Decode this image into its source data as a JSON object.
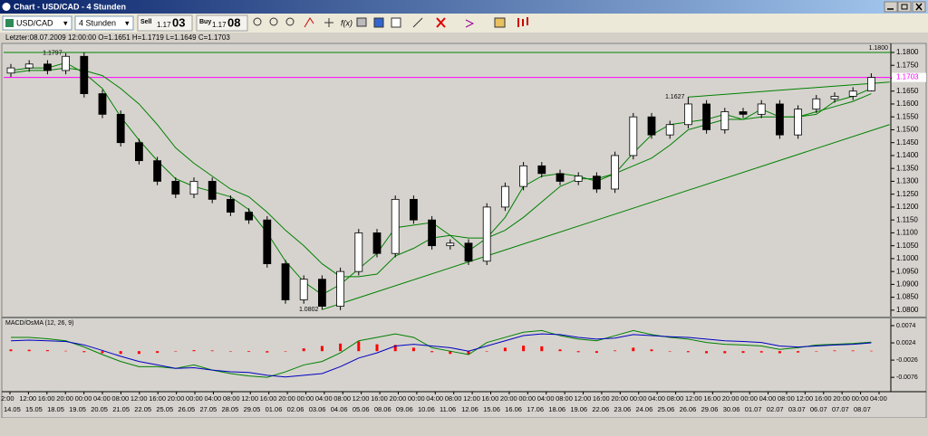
{
  "window": {
    "title": "Chart - USD/CAD - 4 Stunden"
  },
  "toolbar": {
    "symbol": "USD/CAD",
    "period": "4 Stunden",
    "sell": {
      "label": "Sell",
      "price": "1.17",
      "pips": "03"
    },
    "buy": {
      "label": "Buy",
      "price": "1.17",
      "pips": "08"
    }
  },
  "info": "Letzter:08.07.2009 12:00:00 O=1.1651 H=1.1719 L=1.1649 C=1.1703",
  "time_axis": {
    "times": [
      "2:00",
      "12:00",
      "16:00",
      "20:00",
      "00:00",
      "04:00",
      "08:00",
      "12:00",
      "16:00",
      "20:00",
      "00:00",
      "04:00",
      "08:00",
      "12:00",
      "16:00",
      "20:00",
      "00:00",
      "04:00",
      "08:00",
      "12:00",
      "16:00",
      "20:00",
      "00:00",
      "04:00",
      "08:00",
      "12:00",
      "16:00",
      "20:00",
      "00:00",
      "04:00",
      "08:00",
      "12:00",
      "16:00",
      "20:00",
      "00:00",
      "04:00",
      "08:00",
      "12:00",
      "16:00",
      "20:00",
      "00:00",
      "04:00",
      "08:00",
      "12:00",
      "16:00",
      "20:00",
      "00:00",
      "04:00"
    ],
    "dates": [
      "14.05",
      "15.05",
      "18.05",
      "19.05",
      "20.05",
      "21.05",
      "22.05",
      "25.05",
      "26.05",
      "27.05",
      "28.05",
      "29.05",
      "01.06",
      "02.06",
      "03.06",
      "04.06",
      "05.06",
      "08.06",
      "09.06",
      "10.06",
      "11.06",
      "12.06",
      "15.06",
      "16.06",
      "17.06",
      "18.06",
      "19.06",
      "22.06",
      "23.06",
      "24.06",
      "25.06",
      "26.06",
      "29.06",
      "30.06",
      "01.07",
      "02.07",
      "03.07",
      "06.07",
      "07.07",
      "08.07"
    ]
  },
  "chart_data": [
    {
      "type": "candlestick",
      "up_color": "#ffffff",
      "down_color": "#000000",
      "wick_color": "#000000",
      "open": [
        1.172,
        1.174,
        1.1755,
        1.173,
        1.1785,
        1.164,
        1.156,
        1.145,
        1.138,
        1.13,
        1.125,
        1.13,
        1.123,
        1.118,
        1.115,
        1.098,
        1.084,
        1.092,
        1.0815,
        1.095,
        1.11,
        1.102,
        1.123,
        1.115,
        1.105,
        1.106,
        1.099,
        1.12,
        1.128,
        1.136,
        1.133,
        1.13,
        1.132,
        1.127,
        1.14,
        1.155,
        1.148,
        1.152,
        1.16,
        1.15,
        1.157,
        1.156,
        1.16,
        1.148,
        1.158,
        1.162,
        1.163,
        1.1651
      ],
      "high": [
        1.1755,
        1.177,
        1.177,
        1.1797,
        1.18,
        1.1655,
        1.1575,
        1.1465,
        1.1395,
        1.1315,
        1.1315,
        1.1315,
        1.1245,
        1.1195,
        1.1165,
        1.0995,
        1.0935,
        1.0935,
        1.0965,
        1.1115,
        1.1115,
        1.1245,
        1.1245,
        1.1165,
        1.1075,
        1.1075,
        1.1215,
        1.1295,
        1.1375,
        1.1375,
        1.1345,
        1.1335,
        1.1335,
        1.1415,
        1.1565,
        1.1565,
        1.1535,
        1.1627,
        1.1615,
        1.1585,
        1.1585,
        1.1615,
        1.1615,
        1.1595,
        1.1635,
        1.1645,
        1.1665,
        1.1719
      ],
      "low": [
        1.1705,
        1.1725,
        1.1715,
        1.1715,
        1.1625,
        1.1545,
        1.1435,
        1.1365,
        1.1285,
        1.1235,
        1.1235,
        1.1215,
        1.1165,
        1.1135,
        1.0965,
        1.0825,
        1.0825,
        1.0802,
        1.08,
        1.0935,
        1.1005,
        1.1005,
        1.1135,
        1.1035,
        1.1035,
        1.0975,
        1.0975,
        1.1185,
        1.1265,
        1.1315,
        1.1285,
        1.1285,
        1.1255,
        1.1255,
        1.1385,
        1.1465,
        1.1465,
        1.1505,
        1.1485,
        1.1485,
        1.1545,
        1.1545,
        1.1465,
        1.1465,
        1.1565,
        1.1605,
        1.1615,
        1.1649
      ],
      "close": [
        1.174,
        1.1755,
        1.173,
        1.1785,
        1.164,
        1.156,
        1.145,
        1.138,
        1.13,
        1.125,
        1.13,
        1.123,
        1.118,
        1.115,
        1.098,
        1.084,
        1.092,
        1.0815,
        1.095,
        1.11,
        1.102,
        1.123,
        1.115,
        1.105,
        1.106,
        1.099,
        1.12,
        1.128,
        1.136,
        1.133,
        1.13,
        1.132,
        1.127,
        1.14,
        1.155,
        1.148,
        1.152,
        1.16,
        1.15,
        1.157,
        1.156,
        1.16,
        1.148,
        1.158,
        1.162,
        1.163,
        1.165,
        1.1703
      ],
      "moving_averages": [
        {
          "color": "#008000",
          "values": [
            1.173,
            1.174,
            1.174,
            1.176,
            1.172,
            1.166,
            1.155,
            1.146,
            1.138,
            1.131,
            1.128,
            1.126,
            1.124,
            1.119,
            1.11,
            1.099,
            1.091,
            1.086,
            1.09,
            1.096,
            1.102,
            1.112,
            1.113,
            1.114,
            1.109,
            1.103,
            1.108,
            1.116,
            1.128,
            1.132,
            1.133,
            1.132,
            1.13,
            1.133,
            1.141,
            1.148,
            1.152,
            1.153,
            1.154,
            1.156,
            1.154,
            1.158,
            1.155,
            1.155,
            1.156,
            1.161,
            1.163,
            1.166
          ]
        },
        {
          "color": "#008000",
          "values": [
            1.172,
            1.173,
            1.173,
            1.174,
            1.173,
            1.171,
            1.166,
            1.16,
            1.152,
            1.143,
            1.137,
            1.132,
            1.127,
            1.124,
            1.118,
            1.111,
            1.105,
            1.098,
            1.093,
            1.093,
            1.094,
            1.101,
            1.104,
            1.108,
            1.109,
            1.108,
            1.108,
            1.111,
            1.116,
            1.122,
            1.128,
            1.131,
            1.131,
            1.133,
            1.136,
            1.139,
            1.144,
            1.15,
            1.152,
            1.154,
            1.154,
            1.155,
            1.155,
            1.155,
            1.157,
            1.159,
            1.161,
            1.164
          ]
        }
      ],
      "hlines": [
        {
          "value": 1.18,
          "color": "#008000",
          "label": "1.1800",
          "label_at": "line"
        },
        {
          "value": 1.1703,
          "color": "#ff00ff",
          "label": "1.1703",
          "label_at": "axis"
        }
      ],
      "trendlines": [
        {
          "from_index": 17,
          "from_price": 1.0802,
          "to_index": 48,
          "to_price": 1.152,
          "color": "#008000"
        },
        {
          "from_index": 37,
          "from_price": 1.1627,
          "to_index": 48,
          "to_price": 1.1685,
          "color": "#008000"
        }
      ],
      "annotations": [
        {
          "index": 3,
          "price": 1.1797,
          "label": "1.1797"
        },
        {
          "index": 37,
          "price": 1.1627,
          "label": "1.1627"
        },
        {
          "index": 17,
          "price": 1.0802,
          "label": "1.0802"
        }
      ],
      "ylim": [
        1.0775,
        1.1828
      ],
      "yticks": [
        {
          "value": 1.18,
          "label": "1.1800"
        },
        {
          "value": 1.175,
          "label": "1.1750"
        },
        {
          "value": 1.17,
          "label": "1.1700"
        },
        {
          "value": 1.165,
          "label": "1.1650"
        },
        {
          "value": 1.16,
          "label": "1.1600"
        },
        {
          "value": 1.155,
          "label": "1.1550"
        },
        {
          "value": 1.15,
          "label": "1.1500"
        },
        {
          "value": 1.145,
          "label": "1.1450"
        },
        {
          "value": 1.14,
          "label": "1.1400"
        },
        {
          "value": 1.135,
          "label": "1.1350"
        },
        {
          "value": 1.13,
          "label": "1.1300"
        },
        {
          "value": 1.125,
          "label": "1.1250"
        },
        {
          "value": 1.12,
          "label": "1.1200"
        },
        {
          "value": 1.115,
          "label": "1.1150"
        },
        {
          "value": 1.11,
          "label": "1.1100"
        },
        {
          "value": 1.105,
          "label": "1.1050"
        },
        {
          "value": 1.1,
          "label": "1.1000"
        },
        {
          "value": 1.095,
          "label": "1.0950"
        },
        {
          "value": 1.09,
          "label": "1.0900"
        },
        {
          "value": 1.085,
          "label": "1.0850"
        },
        {
          "value": 1.08,
          "label": "1.0800"
        }
      ]
    },
    {
      "type": "macd",
      "title": "MACD/OsMA (12, 26, 9)",
      "macd": {
        "color": "#0000c0",
        "values": [
          0.003,
          0.0032,
          0.003,
          0.0028,
          0.0018,
          0.0002,
          -0.0015,
          -0.003,
          -0.004,
          -0.005,
          -0.0048,
          -0.0055,
          -0.006,
          -0.0062,
          -0.007,
          -0.0075,
          -0.007,
          -0.0065,
          -0.0045,
          -0.002,
          -0.0005,
          0.0015,
          0.002,
          0.0015,
          0.001,
          0,
          0.0015,
          0.003,
          0.0045,
          0.005,
          0.0048,
          0.004,
          0.0035,
          0.0038,
          0.0048,
          0.0045,
          0.0042,
          0.004,
          0.0035,
          0.003,
          0.0028,
          0.0025,
          0.0015,
          0.0012,
          0.0015,
          0.0018,
          0.002,
          0.0024
        ]
      },
      "signal": {
        "color": "#008000",
        "values": [
          0.004,
          0.004,
          0.0036,
          0.003,
          0.0012,
          -0.001,
          -0.003,
          -0.0045,
          -0.0045,
          -0.005,
          -0.004,
          -0.0055,
          -0.0065,
          -0.0072,
          -0.0076,
          -0.006,
          -0.004,
          -0.003,
          -0.0005,
          0.003,
          0.004,
          0.005,
          0.004,
          0.001,
          0,
          -0.001,
          0.0025,
          0.004,
          0.0055,
          0.006,
          0.0045,
          0.0035,
          0.003,
          0.0045,
          0.006,
          0.0048,
          0.004,
          0.0035,
          0.0025,
          0.002,
          0.0018,
          0.0015,
          0.0005,
          0.001,
          0.0018,
          0.002,
          0.0022,
          0.0026
        ]
      },
      "osma": {
        "color": "#ff0000",
        "values": [
          0.0005,
          0.0004,
          0.0003,
          0.0001,
          -0.0003,
          -0.0006,
          -0.0008,
          -0.0008,
          -0.0005,
          0,
          0.0003,
          0.0002,
          0,
          -0.0002,
          -0.0004,
          0,
          0.0008,
          0.0015,
          0.0022,
          0.0028,
          0.002,
          0.0018,
          0.001,
          -0.0003,
          -0.0008,
          -0.001,
          0,
          0.001,
          0.0016,
          0.0014,
          0.0005,
          -0.0003,
          -0.0005,
          0.0002,
          0.001,
          0.0005,
          0,
          -0.0003,
          -0.0006,
          -0.0006,
          -0.0005,
          -0.0004,
          -0.0006,
          -0.0004,
          0,
          0.0002,
          0.0002,
          0.0001
        ]
      },
      "ylim": [
        -0.0115,
        0.0095
      ],
      "yticks": [
        0.0074,
        0.0024,
        -0.0026,
        -0.0076
      ]
    }
  ]
}
